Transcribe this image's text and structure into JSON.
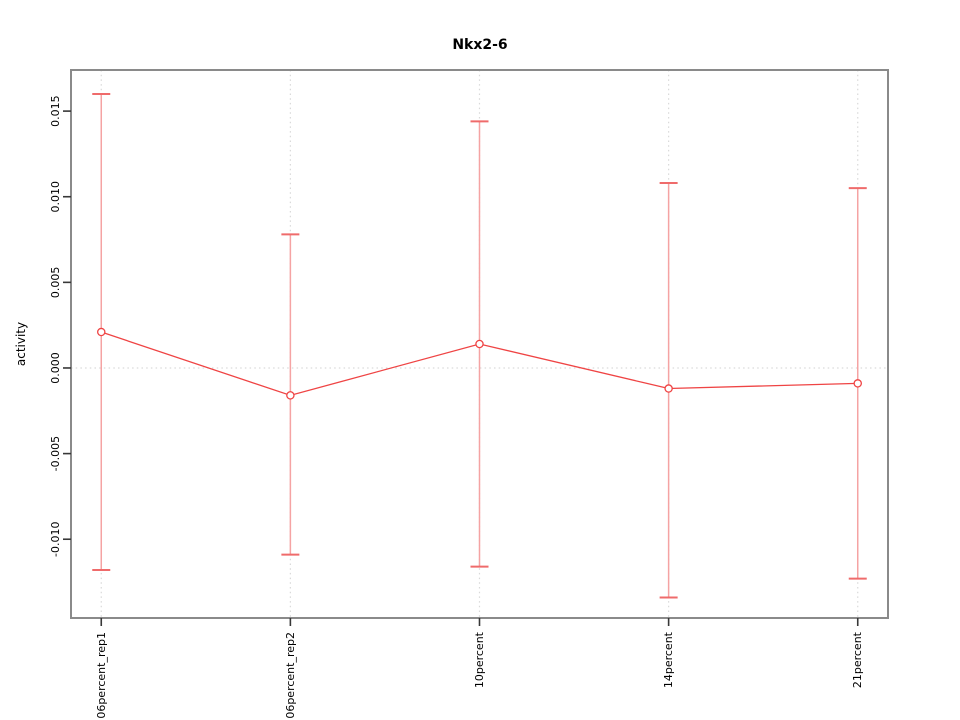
{
  "figure": {
    "background": "#ffffff"
  },
  "chart_data": {
    "type": "line",
    "subtype": "points-with-error-bars",
    "title": "Nkx2-6",
    "xlabel": "",
    "ylabel": "activity",
    "categories": [
      "06percent_rep1",
      "06percent_rep2",
      "10percent",
      "14percent",
      "21percent"
    ],
    "series": [
      {
        "name": "activity",
        "values": [
          0.0021,
          -0.0016,
          0.0014,
          -0.0012,
          -0.0009
        ],
        "error_upper": [
          0.016,
          0.0078,
          0.0144,
          0.0108,
          0.0105
        ],
        "error_lower": [
          -0.0118,
          -0.0109,
          -0.0116,
          -0.0134,
          -0.0123
        ]
      }
    ],
    "ylim": [
      -0.0146,
      0.0174
    ],
    "yticks": [
      -0.01,
      -0.005,
      0.0,
      0.005,
      0.01,
      0.015
    ],
    "ytick_labels": [
      "-0.010",
      "-0.005",
      "0.000",
      "0.005",
      "0.010",
      "0.015"
    ],
    "zero_reference_line": 0,
    "grid": "dotted vertical line at each category, dotted horizontal line at zero",
    "legend": "none",
    "colors": {
      "series": "#ef4444",
      "error_bar_line": "#f5a3a3",
      "error_bar_cap": "#ef6b6b",
      "box": "#8a8a8a",
      "tick": "#383838",
      "grid": "#d9d9d9",
      "text": "#000000",
      "point_fill": "#ffffff"
    }
  }
}
